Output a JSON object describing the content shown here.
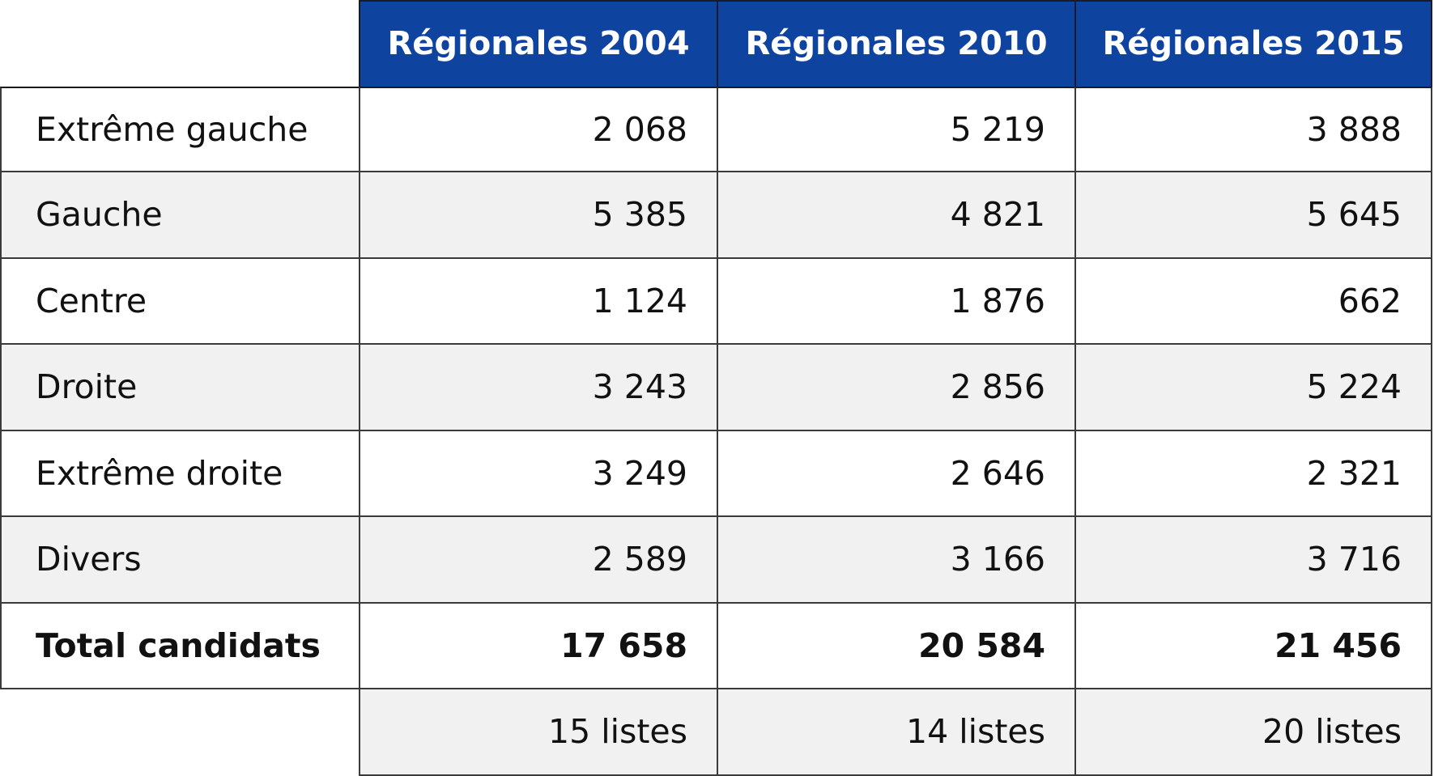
{
  "table": {
    "columns": [
      "Régionales 2004",
      "Régionales 2010",
      "Régionales 2015"
    ],
    "rows": [
      {
        "label": "Extrême gauche",
        "values": [
          "2 068",
          "5 219",
          "3 888"
        ]
      },
      {
        "label": "Gauche",
        "values": [
          "5 385",
          "4 821",
          "5 645"
        ]
      },
      {
        "label": "Centre",
        "values": [
          "1 124",
          "1 876",
          "662"
        ]
      },
      {
        "label": "Droite",
        "values": [
          "3 243",
          "2 856",
          "5 224"
        ]
      },
      {
        "label": "Extrême droite",
        "values": [
          "3 249",
          "2 646",
          "2 321"
        ]
      },
      {
        "label": "Divers",
        "values": [
          "2 589",
          "3 166",
          "3 716"
        ]
      },
      {
        "label": "Total candidats",
        "values": [
          "17 658",
          "20 584",
          "21 456"
        ]
      }
    ],
    "footer": [
      "15 listes",
      "14 listes",
      "20 listes"
    ]
  },
  "colors": {
    "header_bg": "#0f43a0",
    "header_text": "#ffffff",
    "alt_row_bg": "#f1f1f1",
    "border": "#3a3a3a"
  }
}
